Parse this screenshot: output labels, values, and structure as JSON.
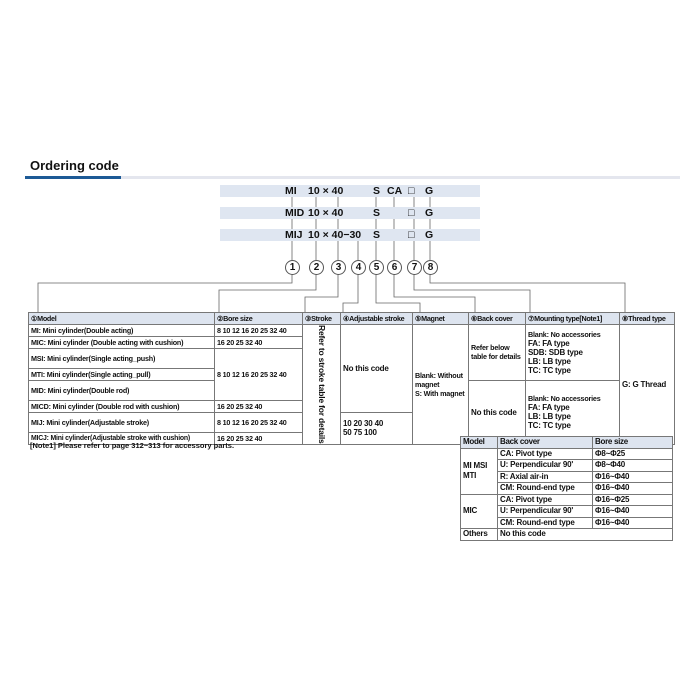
{
  "title": "Ordering code",
  "codes": [
    {
      "model": "MI",
      "size": "10 × 40",
      "magnet": "S",
      "cover": "CA",
      "mount": "□",
      "thread": "G"
    },
    {
      "model": "MID",
      "size": "10 × 40",
      "magnet": "S",
      "cover": "",
      "mount": "□",
      "thread": "G"
    },
    {
      "model": "MIJ",
      "size": "10 × 40−30",
      "magnet": "S",
      "cover": "",
      "mount": "□",
      "thread": "G"
    }
  ],
  "circles": [
    "1",
    "2",
    "3",
    "4",
    "5",
    "6",
    "7",
    "8"
  ],
  "headers": [
    "①Model",
    "②Bore size",
    "③Stroke",
    "④Adjustable stroke",
    "⑤Magnet",
    "⑥Back cover",
    "⑦Mounting type[Note1]",
    "⑧Thread type"
  ],
  "models": [
    {
      "name": "MI: Mini cylinder(Double acting)",
      "bore": "8 10 12 16 20 25 32 40"
    },
    {
      "name": "MIC: Mini cylinder (Double acting with cushion)",
      "bore": "16 20 25 32 40"
    },
    {
      "name": "MSI: Mini cylinder(Single acting_push)",
      "bore": "8 10 12 16 20 25 32 40"
    },
    {
      "name": "MTI: Mini cylinder(Single acting_pull)"
    },
    {
      "name": "MID: Mini cylinder(Double rod)"
    },
    {
      "name": "MICD: Mini cylinder (Double rod with cushion)",
      "bore": "16 20 25 32 40"
    },
    {
      "name": "MIJ: Mini cylinder(Adjustable stroke)",
      "bore": "8 10 12 16 20 25 32 40"
    },
    {
      "name": "MICJ: Mini cylinder(Adjustable stroke with cushion)",
      "bore": "16 20 25 32 40"
    }
  ],
  "stroke": "Refer to stroke table for details",
  "adjustable": {
    "none": "No this code",
    "values1": "10 20 30 40",
    "values2": "50 75 100"
  },
  "magnet": {
    "blank": "Blank: Without magnet",
    "s": "S: With magnet"
  },
  "back_cover": {
    "refer": "Refer below table for details",
    "none": "No this code"
  },
  "mounting": {
    "a": [
      "Blank: No accessories",
      "FA: FA type",
      "SDB: SDB type",
      "LB: LB type",
      "TC: TC type"
    ],
    "b": [
      "Blank: No accessories",
      "FA: FA type",
      "LB: LB type",
      "TC: TC type"
    ]
  },
  "thread": "G: G Thread",
  "note": "[Note1]   Please refer to page 312~313 for accessory parts.",
  "bc_table": {
    "headers": [
      "Model",
      "Back cover",
      "Bore size"
    ],
    "g1": "MI MSI MTI",
    "g2": "MIC",
    "g3": "Others",
    "rows": [
      [
        "CA: Pivot type",
        "Φ8~Φ25"
      ],
      [
        "U: Perpendicular 90'",
        "Φ8~Φ40"
      ],
      [
        "R: Axial air-in",
        "Φ16~Φ40"
      ],
      [
        "CM: Round-end type",
        "Φ16~Φ40"
      ],
      [
        "CA: Pivot type",
        "Φ16~Φ25"
      ],
      [
        "U: Perpendicular 90'",
        "Φ16~Φ40"
      ],
      [
        "CM: Round-end type",
        "Φ16~Φ40"
      ]
    ],
    "others": "No this code"
  }
}
